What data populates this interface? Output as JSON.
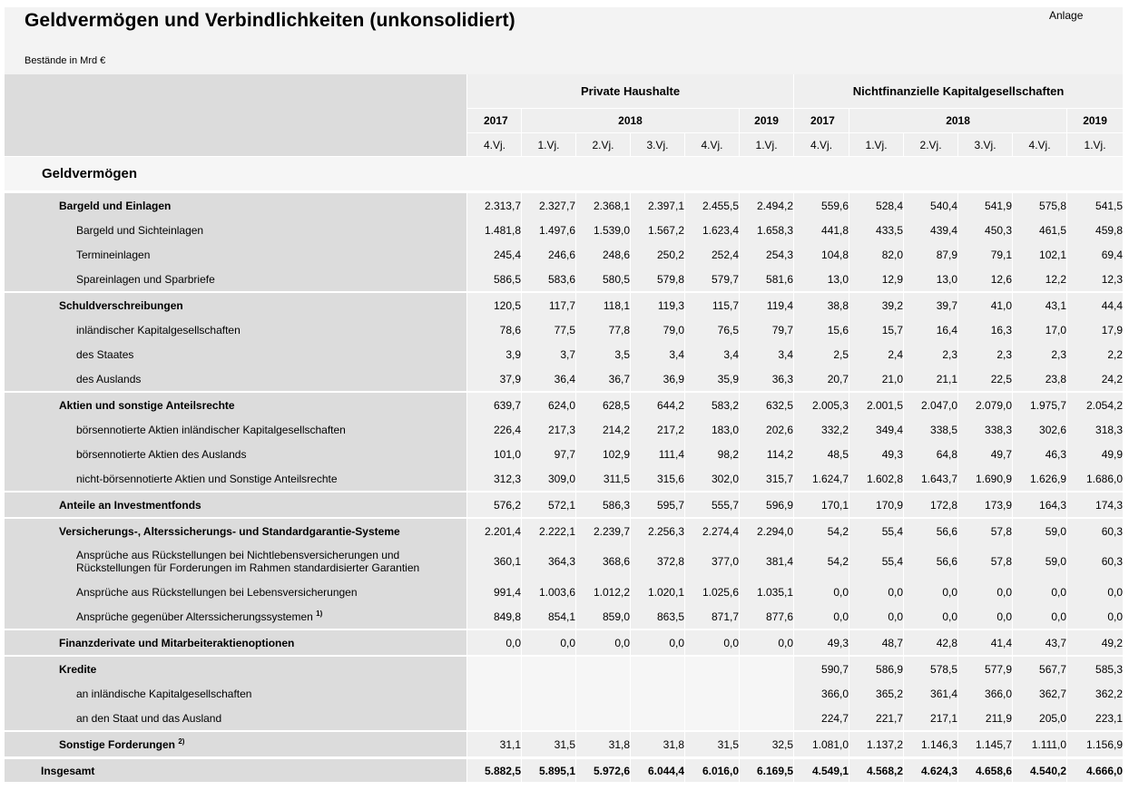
{
  "header": {
    "title": "Geldvermögen und Verbindlichkeiten (unkonsolidiert)",
    "note": "Anlage",
    "unit": "Bestände in Mrd €"
  },
  "groups": [
    "Private Haushalte",
    "Nichtfinanzielle Kapitalgesellschaften"
  ],
  "years": [
    "2017",
    "2018",
    "2019"
  ],
  "quarters": [
    "4.Vj.",
    "1.Vj.",
    "2.Vj.",
    "3.Vj.",
    "4.Vj.",
    "1.Vj."
  ],
  "section": "Geldvermögen",
  "rows": [
    {
      "label": "Bargeld und Einlagen",
      "level": 0,
      "top": true,
      "values": [
        "2.313,7",
        "2.327,7",
        "2.368,1",
        "2.397,1",
        "2.455,5",
        "2.494,2",
        "559,6",
        "528,4",
        "540,4",
        "541,9",
        "575,8",
        "541,5"
      ]
    },
    {
      "label": "Bargeld und Sichteinlagen",
      "level": 1,
      "values": [
        "1.481,8",
        "1.497,6",
        "1.539,0",
        "1.567,2",
        "1.623,4",
        "1.658,3",
        "441,8",
        "433,5",
        "439,4",
        "450,3",
        "461,5",
        "459,8"
      ]
    },
    {
      "label": "Termineinlagen",
      "level": 1,
      "values": [
        "245,4",
        "246,6",
        "248,6",
        "250,2",
        "252,4",
        "254,3",
        "104,8",
        "82,0",
        "87,9",
        "79,1",
        "102,1",
        "69,4"
      ]
    },
    {
      "label": "Spareinlagen und Sparbriefe",
      "level": 1,
      "values": [
        "586,5",
        "583,6",
        "580,5",
        "579,8",
        "579,7",
        "581,6",
        "13,0",
        "12,9",
        "13,0",
        "12,6",
        "12,2",
        "12,3"
      ]
    },
    {
      "label": "Schuldverschreibungen",
      "level": 0,
      "top": true,
      "values": [
        "120,5",
        "117,7",
        "118,1",
        "119,3",
        "115,7",
        "119,4",
        "38,8",
        "39,2",
        "39,7",
        "41,0",
        "43,1",
        "44,4"
      ]
    },
    {
      "label": "inländischer Kapitalgesellschaften",
      "level": 1,
      "values": [
        "78,6",
        "77,5",
        "77,8",
        "79,0",
        "76,5",
        "79,7",
        "15,6",
        "15,7",
        "16,4",
        "16,3",
        "17,0",
        "17,9"
      ]
    },
    {
      "label": "des Staates",
      "level": 1,
      "values": [
        "3,9",
        "3,7",
        "3,5",
        "3,4",
        "3,4",
        "3,4",
        "2,5",
        "2,4",
        "2,3",
        "2,3",
        "2,3",
        "2,2"
      ]
    },
    {
      "label": "des Auslands",
      "level": 1,
      "values": [
        "37,9",
        "36,4",
        "36,7",
        "36,9",
        "35,9",
        "36,3",
        "20,7",
        "21,0",
        "21,1",
        "22,5",
        "23,8",
        "24,2"
      ]
    },
    {
      "label": "Aktien und sonstige Anteilsrechte",
      "level": 0,
      "top": true,
      "values": [
        "639,7",
        "624,0",
        "628,5",
        "644,2",
        "583,2",
        "632,5",
        "2.005,3",
        "2.001,5",
        "2.047,0",
        "2.079,0",
        "1.975,7",
        "2.054,2"
      ]
    },
    {
      "label": "börsennotierte Aktien inländischer Kapitalgesellschaften",
      "level": 1,
      "values": [
        "226,4",
        "217,3",
        "214,2",
        "217,2",
        "183,0",
        "202,6",
        "332,2",
        "349,4",
        "338,5",
        "338,3",
        "302,6",
        "318,3"
      ]
    },
    {
      "label": "börsennotierte Aktien des Auslands",
      "level": 1,
      "values": [
        "101,0",
        "97,7",
        "102,9",
        "111,4",
        "98,2",
        "114,2",
        "48,5",
        "49,3",
        "64,8",
        "49,7",
        "46,3",
        "49,9"
      ]
    },
    {
      "label": "nicht-börsennotierte Aktien und Sonstige Anteilsrechte",
      "level": 1,
      "values": [
        "312,3",
        "309,0",
        "311,5",
        "315,6",
        "302,0",
        "315,7",
        "1.624,7",
        "1.602,8",
        "1.643,7",
        "1.690,9",
        "1.626,9",
        "1.686,0"
      ]
    },
    {
      "label": "Anteile an Investmentfonds",
      "level": 0,
      "top": true,
      "values": [
        "576,2",
        "572,1",
        "586,3",
        "595,7",
        "555,7",
        "596,9",
        "170,1",
        "170,9",
        "172,8",
        "173,9",
        "164,3",
        "174,3"
      ]
    },
    {
      "label": "Versicherungs-, Alterssicherungs- und Standardgarantie-Systeme",
      "level": 0,
      "top": true,
      "values": [
        "2.201,4",
        "2.222,1",
        "2.239,7",
        "2.256,3",
        "2.274,4",
        "2.294,0",
        "54,2",
        "55,4",
        "56,6",
        "57,8",
        "59,0",
        "60,3"
      ]
    },
    {
      "label": "Ansprüche aus Rückstellungen bei Nichtlebensversicherungen und Rückstellungen für Forderungen im Rahmen standardisierter Garantien",
      "level": 1,
      "tall": true,
      "values": [
        "360,1",
        "364,3",
        "368,6",
        "372,8",
        "377,0",
        "381,4",
        "54,2",
        "55,4",
        "56,6",
        "57,8",
        "59,0",
        "60,3"
      ]
    },
    {
      "label": "Ansprüche aus Rückstellungen bei Lebensversicherungen",
      "level": 1,
      "values": [
        "991,4",
        "1.003,6",
        "1.012,2",
        "1.020,1",
        "1.025,6",
        "1.035,1",
        "0,0",
        "0,0",
        "0,0",
        "0,0",
        "0,0",
        "0,0"
      ]
    },
    {
      "label": "Ansprüche gegenüber Alterssicherungssystemen",
      "footnote": "1)",
      "level": 1,
      "values": [
        "849,8",
        "854,1",
        "859,0",
        "863,5",
        "871,7",
        "877,6",
        "0,0",
        "0,0",
        "0,0",
        "0,0",
        "0,0",
        "0,0"
      ]
    },
    {
      "label": "Finanzderivate und Mitarbeiteraktienoptionen",
      "level": 0,
      "top": true,
      "values": [
        "0,0",
        "0,0",
        "0,0",
        "0,0",
        "0,0",
        "0,0",
        "49,3",
        "48,7",
        "42,8",
        "41,4",
        "43,7",
        "49,2"
      ]
    },
    {
      "label": "Kredite",
      "level": 0,
      "top": true,
      "values": [
        "",
        "",
        "",
        "",
        "",
        "",
        "590,7",
        "586,9",
        "578,5",
        "577,9",
        "567,7",
        "585,3"
      ]
    },
    {
      "label": "an inländische Kapitalgesellschaften",
      "level": 1,
      "values": [
        "",
        "",
        "",
        "",
        "",
        "",
        "366,0",
        "365,2",
        "361,4",
        "366,0",
        "362,7",
        "362,2"
      ]
    },
    {
      "label": "an den Staat und das Ausland",
      "level": 1,
      "values": [
        "",
        "",
        "",
        "",
        "",
        "",
        "224,7",
        "221,7",
        "217,1",
        "211,9",
        "205,0",
        "223,1"
      ]
    },
    {
      "label": "Sonstige Forderungen",
      "footnote": "2)",
      "level": 0,
      "top": true,
      "values": [
        "31,1",
        "31,5",
        "31,8",
        "31,8",
        "31,5",
        "32,5",
        "1.081,0",
        "1.137,2",
        "1.146,3",
        "1.145,7",
        "1.111,0",
        "1.156,9"
      ]
    }
  ],
  "total": {
    "label": "Insgesamt",
    "values": [
      "5.882,5",
      "5.895,1",
      "5.972,6",
      "6.044,4",
      "6.016,0",
      "6.169,5",
      "4.549,1",
      "4.568,2",
      "4.624,3",
      "4.658,6",
      "4.540,2",
      "4.666,0"
    ]
  }
}
